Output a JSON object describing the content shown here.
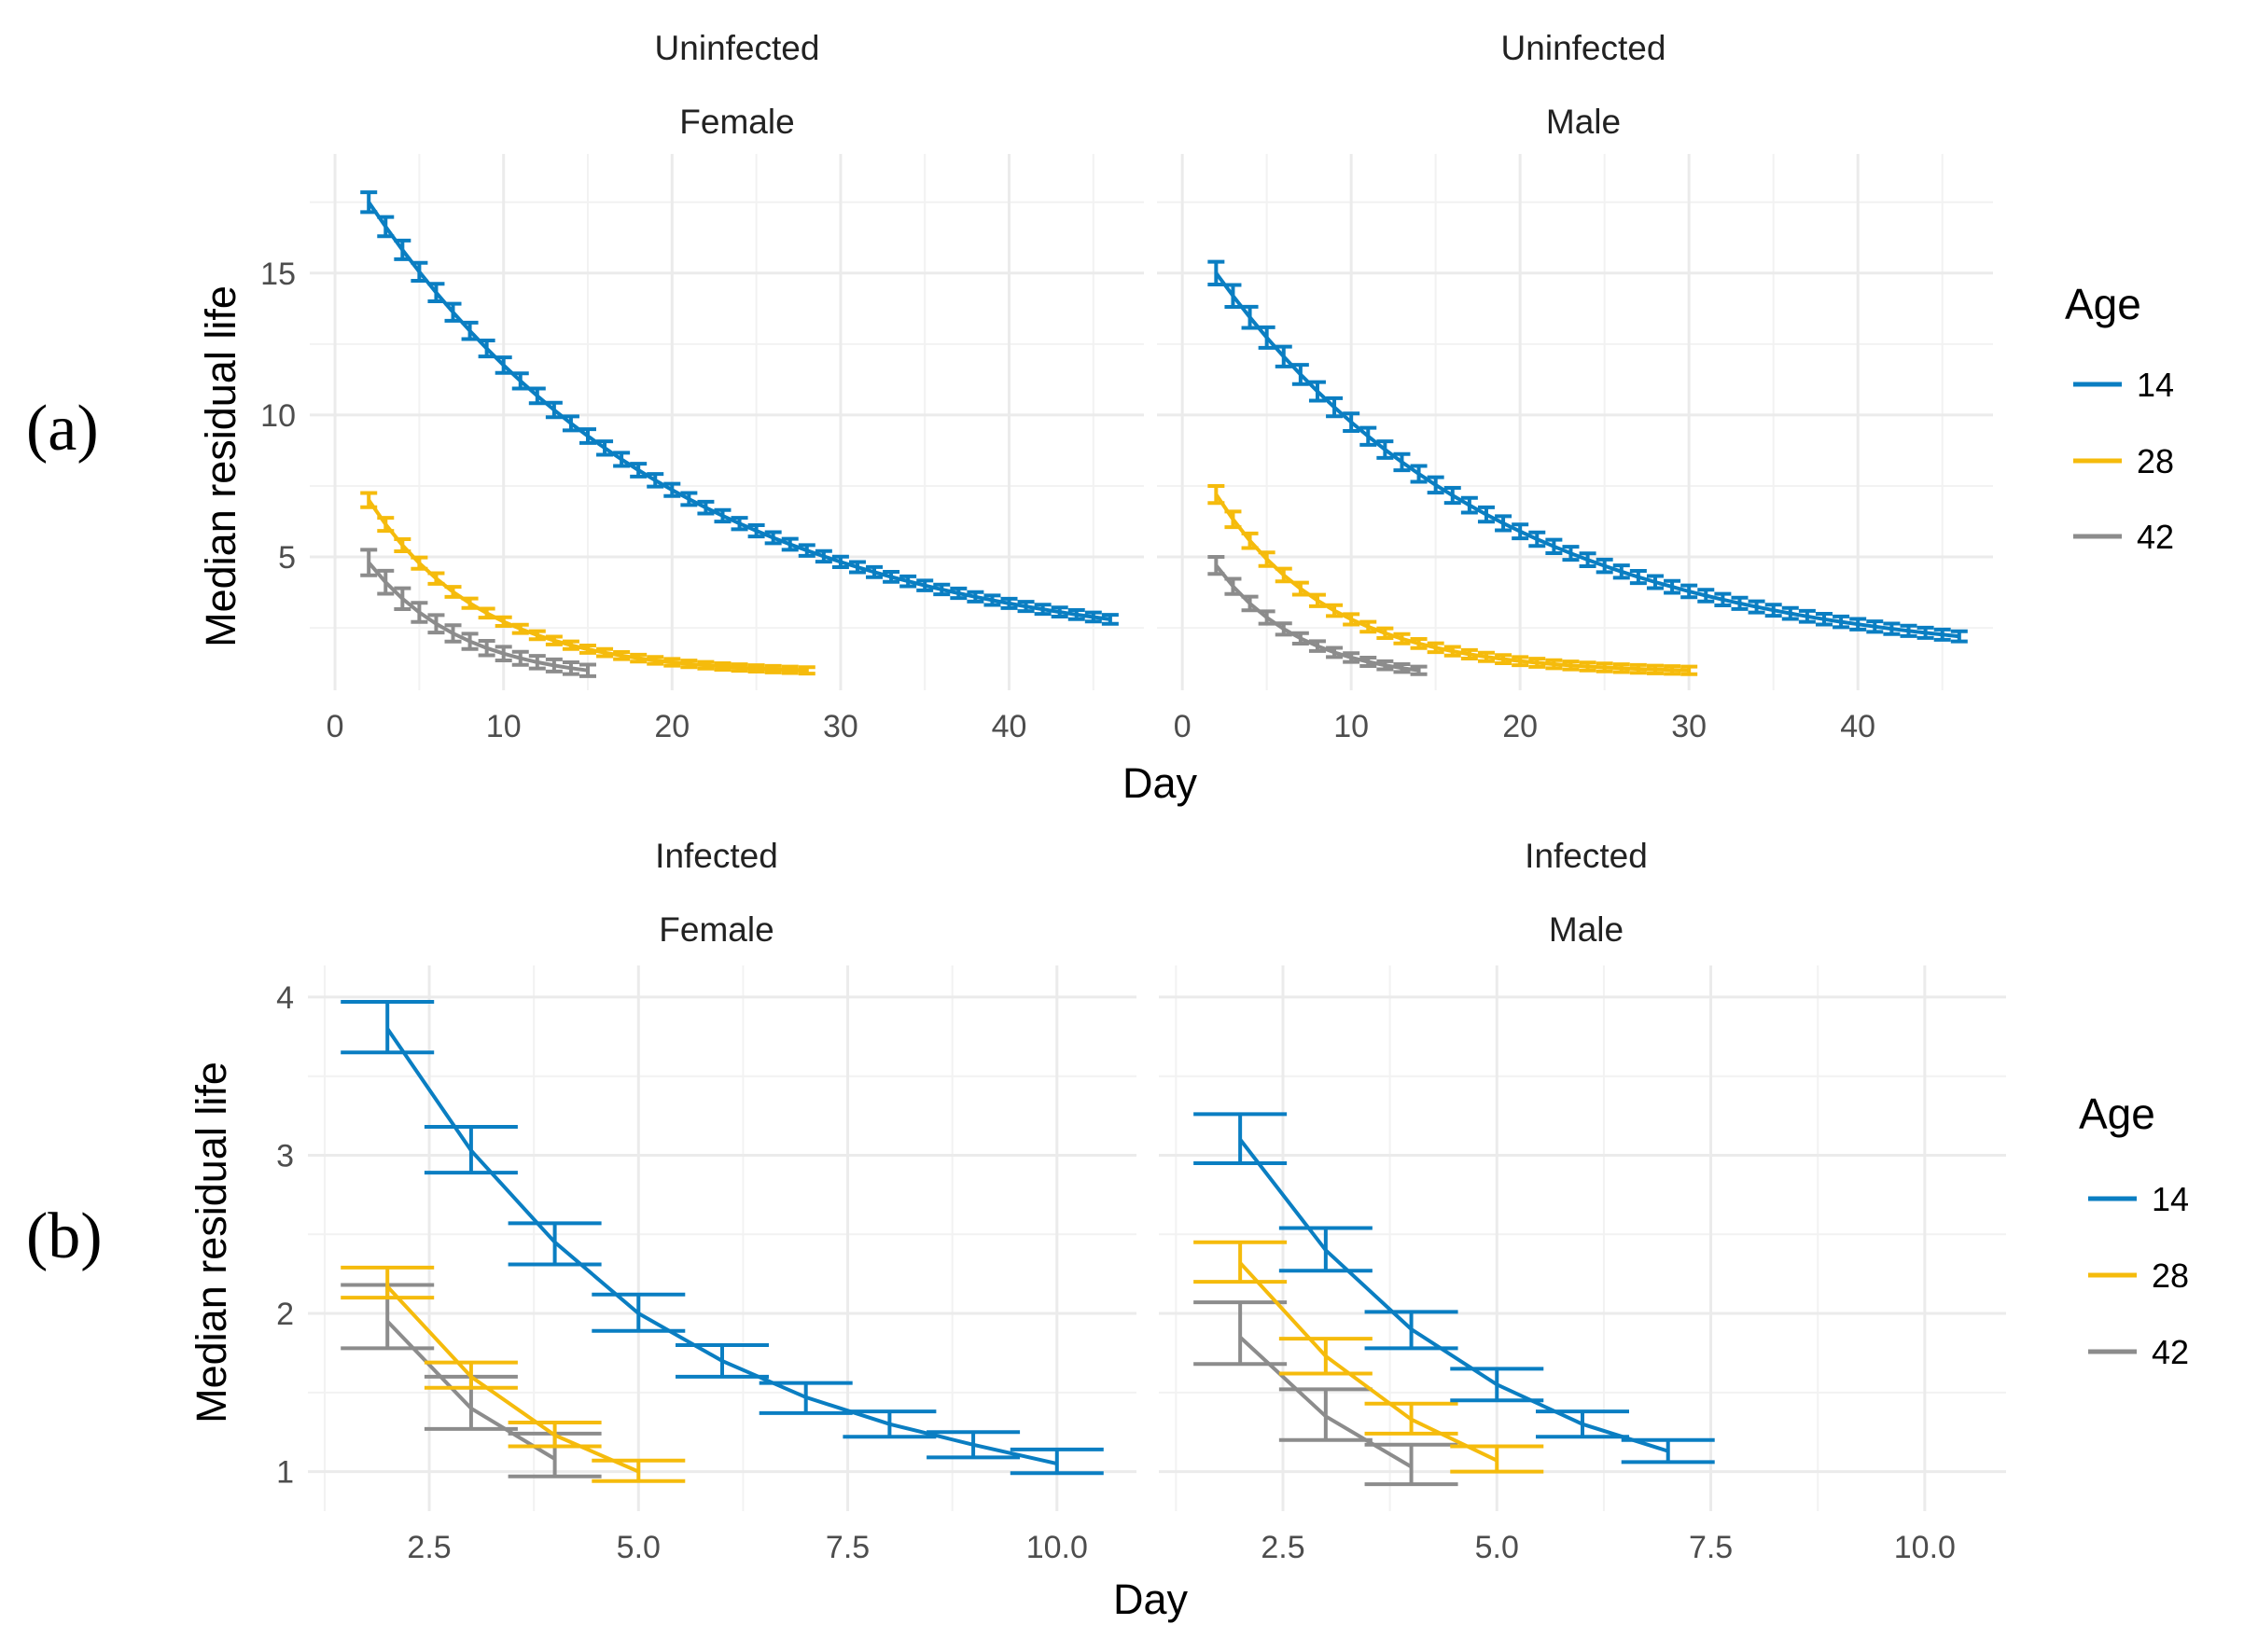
{
  "colors": {
    "age14": "#0a7ec2",
    "age28": "#f5bb0c",
    "age42": "#8c8c8c",
    "grid": "#ebebeb"
  },
  "panel_a": {
    "label": "(a)",
    "ylabel": "Median residual life",
    "xlabel": "Day",
    "legend": {
      "title": "Age",
      "items": [
        "14",
        "28",
        "42"
      ]
    }
  },
  "panel_b": {
    "label": "(b)",
    "ylabel": "Median residual life",
    "xlabel": "Day",
    "legend": {
      "title": "Age",
      "items": [
        "14",
        "28",
        "42"
      ]
    }
  },
  "chart_data": [
    {
      "type": "line",
      "panel": "a",
      "facet": {
        "row": "Uninfected",
        "col": "Female"
      },
      "xlabel": "Day",
      "ylabel": "Median residual life",
      "xlim": [
        -1.5,
        48
      ],
      "ylim": [
        0.3,
        19.2
      ],
      "xticks": [
        0,
        10,
        20,
        30,
        40
      ],
      "xtick_labels": [
        "0",
        "10",
        "20",
        "30",
        "40"
      ],
      "yticks": [
        5,
        10,
        15
      ],
      "ytick_labels": [
        "5",
        "10",
        "15"
      ],
      "series": [
        {
          "name": "14",
          "x_start": 2,
          "x_end": 46,
          "y_start": 17.5,
          "y_end": 2.8,
          "k": 0.055,
          "err": 0.35
        },
        {
          "name": "28",
          "x_start": 2,
          "x_end": 28,
          "y_start": 7.0,
          "y_end": 1.0,
          "k": 0.15,
          "err": 0.25
        },
        {
          "name": "42",
          "x_start": 2,
          "x_end": 15,
          "y_start": 4.8,
          "y_end": 1.0,
          "k": 0.18,
          "err": 0.45
        }
      ]
    },
    {
      "type": "line",
      "panel": "a",
      "facet": {
        "row": "Uninfected",
        "col": "Male"
      },
      "xlabel": "Day",
      "ylabel": "Median residual life",
      "xlim": [
        -1.5,
        48
      ],
      "ylim": [
        0.3,
        19.2
      ],
      "xticks": [
        0,
        10,
        20,
        30,
        40
      ],
      "xtick_labels": [
        "0",
        "10",
        "20",
        "30",
        "40"
      ],
      "yticks": [
        5,
        10,
        15
      ],
      "ytick_labels": [
        "5",
        "10",
        "15"
      ],
      "series": [
        {
          "name": "14",
          "x_start": 2,
          "x_end": 46,
          "y_start": 15.0,
          "y_end": 2.2,
          "k": 0.06,
          "err": 0.4
        },
        {
          "name": "28",
          "x_start": 2,
          "x_end": 30,
          "y_start": 7.2,
          "y_end": 1.0,
          "k": 0.15,
          "err": 0.3
        },
        {
          "name": "42",
          "x_start": 2,
          "x_end": 14,
          "y_start": 4.7,
          "y_end": 1.0,
          "k": 0.2,
          "err": 0.3
        }
      ]
    },
    {
      "type": "line",
      "panel": "b",
      "facet": {
        "row": "Infected",
        "col": "Female"
      },
      "xlabel": "Day",
      "ylabel": "Median residual life",
      "xlim": [
        1.05,
        10.95
      ],
      "ylim": [
        0.75,
        4.2
      ],
      "xticks": [
        2.5,
        5.0,
        7.5,
        10.0
      ],
      "xtick_labels": [
        "2.5",
        "5.0",
        "7.5",
        "10.0"
      ],
      "yticks": [
        1,
        2,
        3,
        4
      ],
      "ytick_labels": [
        "1",
        "2",
        "3",
        "4"
      ],
      "series": [
        {
          "name": "14",
          "points": [
            {
              "x": 2,
              "y": 3.8,
              "lo": 3.65,
              "hi": 3.97
            },
            {
              "x": 3,
              "y": 3.03,
              "lo": 2.89,
              "hi": 3.18
            },
            {
              "x": 4,
              "y": 2.45,
              "lo": 2.31,
              "hi": 2.57
            },
            {
              "x": 5,
              "y": 2.0,
              "lo": 1.89,
              "hi": 2.12
            },
            {
              "x": 6,
              "y": 1.7,
              "lo": 1.6,
              "hi": 1.8
            },
            {
              "x": 7,
              "y": 1.47,
              "lo": 1.37,
              "hi": 1.56
            },
            {
              "x": 8,
              "y": 1.3,
              "lo": 1.22,
              "hi": 1.38
            },
            {
              "x": 9,
              "y": 1.17,
              "lo": 1.09,
              "hi": 1.25
            },
            {
              "x": 10,
              "y": 1.05,
              "lo": 0.99,
              "hi": 1.14
            }
          ]
        },
        {
          "name": "28",
          "points": [
            {
              "x": 2,
              "y": 2.17,
              "lo": 2.1,
              "hi": 2.29
            },
            {
              "x": 3,
              "y": 1.6,
              "lo": 1.53,
              "hi": 1.69
            },
            {
              "x": 4,
              "y": 1.23,
              "lo": 1.16,
              "hi": 1.31
            },
            {
              "x": 5,
              "y": 1.0,
              "lo": 0.94,
              "hi": 1.07
            }
          ]
        },
        {
          "name": "42",
          "points": [
            {
              "x": 2,
              "y": 1.95,
              "lo": 1.78,
              "hi": 2.18
            },
            {
              "x": 3,
              "y": 1.4,
              "lo": 1.27,
              "hi": 1.6
            },
            {
              "x": 4,
              "y": 1.08,
              "lo": 0.97,
              "hi": 1.24
            }
          ]
        }
      ]
    },
    {
      "type": "line",
      "panel": "b",
      "facet": {
        "row": "Infected",
        "col": "Male"
      },
      "xlabel": "Day",
      "ylabel": "Median residual life",
      "xlim": [
        1.05,
        10.95
      ],
      "ylim": [
        0.75,
        4.2
      ],
      "xticks": [
        2.5,
        5.0,
        7.5,
        10.0
      ],
      "xtick_labels": [
        "2.5",
        "5.0",
        "7.5",
        "10.0"
      ],
      "yticks": [
        1,
        2,
        3,
        4
      ],
      "ytick_labels": [
        "1",
        "2",
        "3",
        "4"
      ],
      "series": [
        {
          "name": "14",
          "points": [
            {
              "x": 2,
              "y": 3.1,
              "lo": 2.95,
              "hi": 3.26
            },
            {
              "x": 3,
              "y": 2.4,
              "lo": 2.27,
              "hi": 2.54
            },
            {
              "x": 4,
              "y": 1.9,
              "lo": 1.78,
              "hi": 2.01
            },
            {
              "x": 5,
              "y": 1.55,
              "lo": 1.45,
              "hi": 1.65
            },
            {
              "x": 6,
              "y": 1.3,
              "lo": 1.22,
              "hi": 1.38
            },
            {
              "x": 7,
              "y": 1.13,
              "lo": 1.06,
              "hi": 1.2
            }
          ]
        },
        {
          "name": "28",
          "points": [
            {
              "x": 2,
              "y": 2.32,
              "lo": 2.2,
              "hi": 2.45
            },
            {
              "x": 3,
              "y": 1.73,
              "lo": 1.62,
              "hi": 1.84
            },
            {
              "x": 4,
              "y": 1.33,
              "lo": 1.24,
              "hi": 1.43
            },
            {
              "x": 5,
              "y": 1.07,
              "lo": 1.0,
              "hi": 1.16
            }
          ]
        },
        {
          "name": "42",
          "points": [
            {
              "x": 2,
              "y": 1.85,
              "lo": 1.68,
              "hi": 2.07
            },
            {
              "x": 3,
              "y": 1.35,
              "lo": 1.2,
              "hi": 1.52
            },
            {
              "x": 4,
              "y": 1.03,
              "lo": 0.92,
              "hi": 1.17
            }
          ]
        }
      ]
    }
  ]
}
